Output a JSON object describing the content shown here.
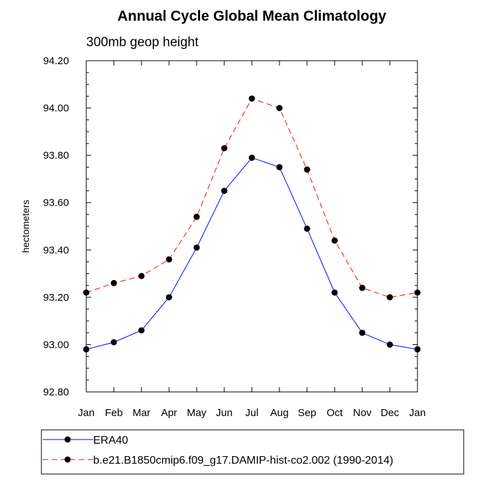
{
  "chart_data": {
    "type": "line",
    "title": "Annual Cycle Global Mean Climatology",
    "subtitle": "300mb geop height",
    "ylabel": "hectometers",
    "xlabel": "",
    "categories": [
      "Jan",
      "Feb",
      "Mar",
      "Apr",
      "May",
      "Jun",
      "Jul",
      "Aug",
      "Sep",
      "Oct",
      "Nov",
      "Dec",
      "Jan"
    ],
    "ylim": [
      92.8,
      94.2
    ],
    "yticks": [
      "92.80",
      "93.00",
      "93.20",
      "93.40",
      "93.60",
      "93.80",
      "94.00",
      "94.20"
    ],
    "ytick_values": [
      92.8,
      93.0,
      93.2,
      93.4,
      93.6,
      93.8,
      94.0,
      94.2
    ],
    "grid": false,
    "legend_position": "bottom",
    "series": [
      {
        "name": "ERA40",
        "color": "#0000ff",
        "line_style": "solid",
        "marker": "filled-circle",
        "values": [
          92.98,
          93.01,
          93.06,
          93.2,
          93.41,
          93.65,
          93.79,
          93.75,
          93.49,
          93.22,
          93.05,
          93.0,
          92.98
        ]
      },
      {
        "name": "b.e21.B1850cmip6.f09_g17.DAMIP-hist-co2.002 (1990-2014)",
        "color": "#ff0000",
        "line_style": "dashed",
        "marker": "filled-circle",
        "values": [
          93.22,
          93.26,
          93.29,
          93.36,
          93.54,
          93.83,
          94.04,
          94.0,
          93.74,
          93.44,
          93.24,
          93.2,
          93.22
        ]
      }
    ]
  }
}
